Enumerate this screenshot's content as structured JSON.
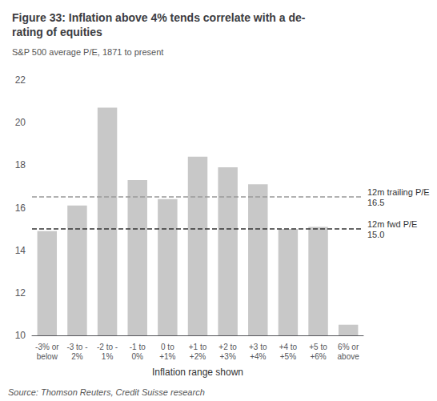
{
  "chart_data": {
    "type": "bar",
    "title": "Figure 33: Inflation above 4% tends correlate with a de-\nrating of equities",
    "subtitle": "S&P 500 average P/E, 1871 to present",
    "xlabel": "Inflation range shown",
    "source": "Source: Thomson Reuters, Credit Suisse research",
    "categories": [
      "-3% or\nbelow",
      "-3 to -\n2%",
      "-2 to -\n1%",
      "-1 to\n0%",
      "0 to\n+1%",
      "+1 to\n+2%",
      "+2 to\n+3%",
      "+3 to\n+4%",
      "+4 to\n+5%",
      "+5 to\n+6%",
      "6% or\nabove"
    ],
    "values": [
      14.9,
      16.1,
      20.7,
      17.3,
      16.4,
      18.4,
      17.9,
      17.1,
      15.0,
      15.1,
      10.5
    ],
    "color": "#c8c8c8",
    "ylim": [
      10,
      22
    ],
    "yticks": [
      10,
      12,
      14,
      16,
      18,
      20,
      22
    ],
    "grid": false,
    "reference_lines": [
      {
        "name": "12m trailing P/E",
        "value": 16.5,
        "label": "16.5",
        "color": "#999999",
        "line_style": "dashed"
      },
      {
        "name": "12m fwd P/E",
        "value": 15.0,
        "label": "15.0",
        "color": "#333333",
        "line_style": "dashed"
      }
    ]
  }
}
